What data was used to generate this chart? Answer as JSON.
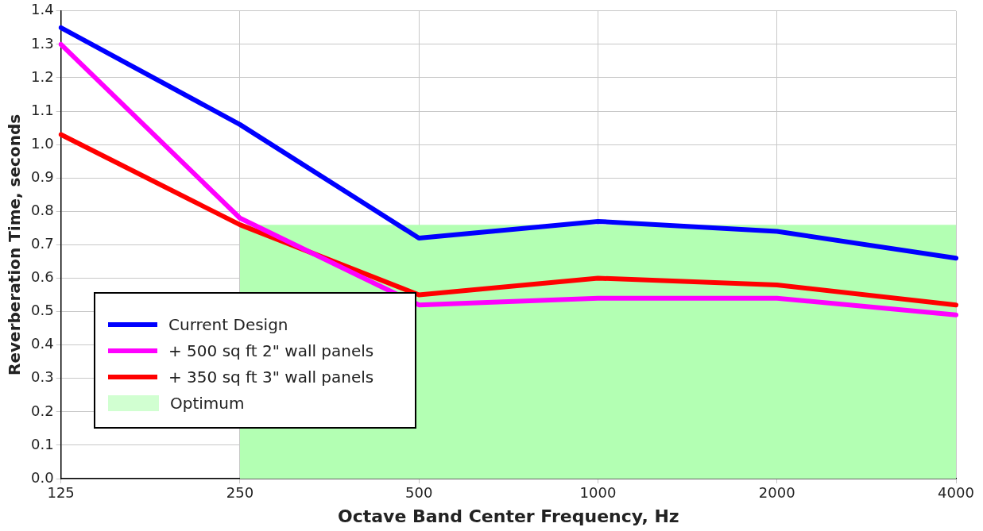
{
  "chart_data": {
    "type": "line",
    "xlabel": "Octave Band Center Frequency, Hz",
    "ylabel": "Reverberation Time, seconds",
    "categories": [
      "125",
      "250",
      "500",
      "1000",
      "2000",
      "4000"
    ],
    "series": [
      {
        "name": "Optimum",
        "type": "area",
        "color": "#b3ffb3",
        "values": [
          null,
          0.76,
          0.76,
          0.76,
          0.76,
          0.76
        ]
      },
      {
        "name": "Current Design",
        "color": "#0000ff",
        "values": [
          1.35,
          1.06,
          0.72,
          0.77,
          0.74,
          0.66
        ]
      },
      {
        "name": "+ 500 sq ft 2\" wall panels",
        "color": "#ff00ff",
        "values": [
          1.3,
          0.78,
          0.52,
          0.54,
          0.54,
          0.49
        ]
      },
      {
        "name": "+ 350 sq ft 3\" wall panels",
        "color": "#ff0000",
        "values": [
          1.03,
          0.76,
          0.55,
          0.6,
          0.58,
          0.52
        ]
      }
    ],
    "ylim": [
      0,
      1.4
    ],
    "yticks": [
      {
        "value": 0,
        "label": "0.0"
      },
      0.1,
      0.2,
      0.3,
      0.4,
      0.5,
      0.6,
      0.7,
      0.8,
      0.9,
      {
        "value": 1,
        "label": "1.0"
      },
      1.1,
      1.2,
      1.3,
      1.4
    ],
    "grid": true,
    "legend": "bottom left",
    "marker": "none",
    "line_style": "solid"
  }
}
